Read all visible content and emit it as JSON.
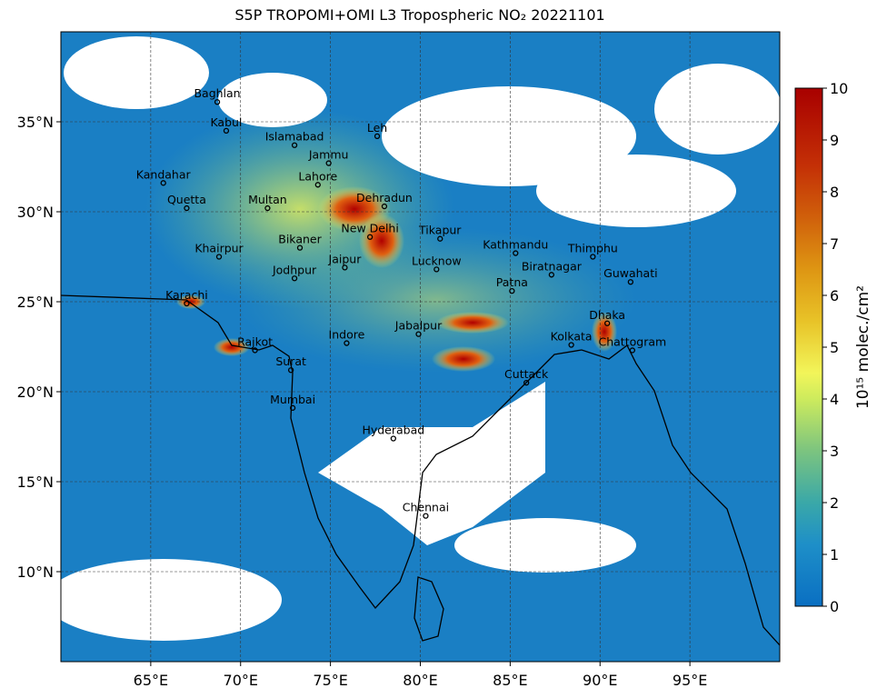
{
  "map": {
    "title": "S5P TROPOMI+OMI L3 Tropospheric NO₂  20221101",
    "xlim": [
      60,
      100
    ],
    "ylim": [
      5,
      40
    ],
    "xticks": [
      {
        "value": 65,
        "label": "65°E"
      },
      {
        "value": 70,
        "label": "70°E"
      },
      {
        "value": 75,
        "label": "75°E"
      },
      {
        "value": 80,
        "label": "80°E"
      },
      {
        "value": 85,
        "label": "85°E"
      },
      {
        "value": 90,
        "label": "90°E"
      },
      {
        "value": 95,
        "label": "95°E"
      }
    ],
    "yticks": [
      {
        "value": 10,
        "label": "10°N"
      },
      {
        "value": 15,
        "label": "15°N"
      },
      {
        "value": 20,
        "label": "20°N"
      },
      {
        "value": 25,
        "label": "25°N"
      },
      {
        "value": 30,
        "label": "30°N"
      },
      {
        "value": 35,
        "label": "35°N"
      }
    ],
    "grid": true,
    "cities": [
      {
        "name": "Baghlan",
        "lon": 68.7,
        "lat": 36.1
      },
      {
        "name": "Kabul",
        "lon": 69.2,
        "lat": 34.5
      },
      {
        "name": "Islamabad",
        "lon": 73.0,
        "lat": 33.7
      },
      {
        "name": "Leh",
        "lon": 77.6,
        "lat": 34.2
      },
      {
        "name": "Jammu",
        "lon": 74.9,
        "lat": 32.7
      },
      {
        "name": "Kandahar",
        "lon": 65.7,
        "lat": 31.6
      },
      {
        "name": "Lahore",
        "lon": 74.3,
        "lat": 31.5
      },
      {
        "name": "Quetta",
        "lon": 67.0,
        "lat": 30.2
      },
      {
        "name": "Multan",
        "lon": 71.5,
        "lat": 30.2
      },
      {
        "name": "Dehradun",
        "lon": 78.0,
        "lat": 30.3
      },
      {
        "name": "New Delhi",
        "lon": 77.2,
        "lat": 28.6
      },
      {
        "name": "Tikapur",
        "lon": 81.1,
        "lat": 28.5
      },
      {
        "name": "Bikaner",
        "lon": 73.3,
        "lat": 28.0
      },
      {
        "name": "Kathmandu",
        "lon": 85.3,
        "lat": 27.7
      },
      {
        "name": "Thimphu",
        "lon": 89.6,
        "lat": 27.5
      },
      {
        "name": "Khairpur",
        "lon": 68.8,
        "lat": 27.5
      },
      {
        "name": "Jaipur",
        "lon": 75.8,
        "lat": 26.9
      },
      {
        "name": "Lucknow",
        "lon": 80.9,
        "lat": 26.8
      },
      {
        "name": "Biratnagar",
        "lon": 87.3,
        "lat": 26.5
      },
      {
        "name": "Jodhpur",
        "lon": 73.0,
        "lat": 26.3
      },
      {
        "name": "Guwahati",
        "lon": 91.7,
        "lat": 26.1
      },
      {
        "name": "Patna",
        "lon": 85.1,
        "lat": 25.6
      },
      {
        "name": "Karachi",
        "lon": 67.0,
        "lat": 24.9
      },
      {
        "name": "Dhaka",
        "lon": 90.4,
        "lat": 23.8
      },
      {
        "name": "Jabalpur",
        "lon": 79.9,
        "lat": 23.2
      },
      {
        "name": "Indore",
        "lon": 75.9,
        "lat": 22.7
      },
      {
        "name": "Kolkata",
        "lon": 88.4,
        "lat": 22.6
      },
      {
        "name": "Rajkot",
        "lon": 70.8,
        "lat": 22.3
      },
      {
        "name": "Chattogram",
        "lon": 91.8,
        "lat": 22.3
      },
      {
        "name": "Surat",
        "lon": 72.8,
        "lat": 21.2
      },
      {
        "name": "Cuttack",
        "lon": 85.9,
        "lat": 20.5
      },
      {
        "name": "Mumbai",
        "lon": 72.9,
        "lat": 19.1
      },
      {
        "name": "Hyderabad",
        "lon": 78.5,
        "lat": 17.4
      },
      {
        "name": "Chennai",
        "lon": 80.3,
        "lat": 13.1
      }
    ],
    "colorbar": {
      "label": "10¹⁵ molec./cm²",
      "clim": [
        0,
        10
      ],
      "ticks": [
        0,
        1,
        2,
        3,
        4,
        5,
        6,
        7,
        8,
        9,
        10
      ]
    }
  }
}
